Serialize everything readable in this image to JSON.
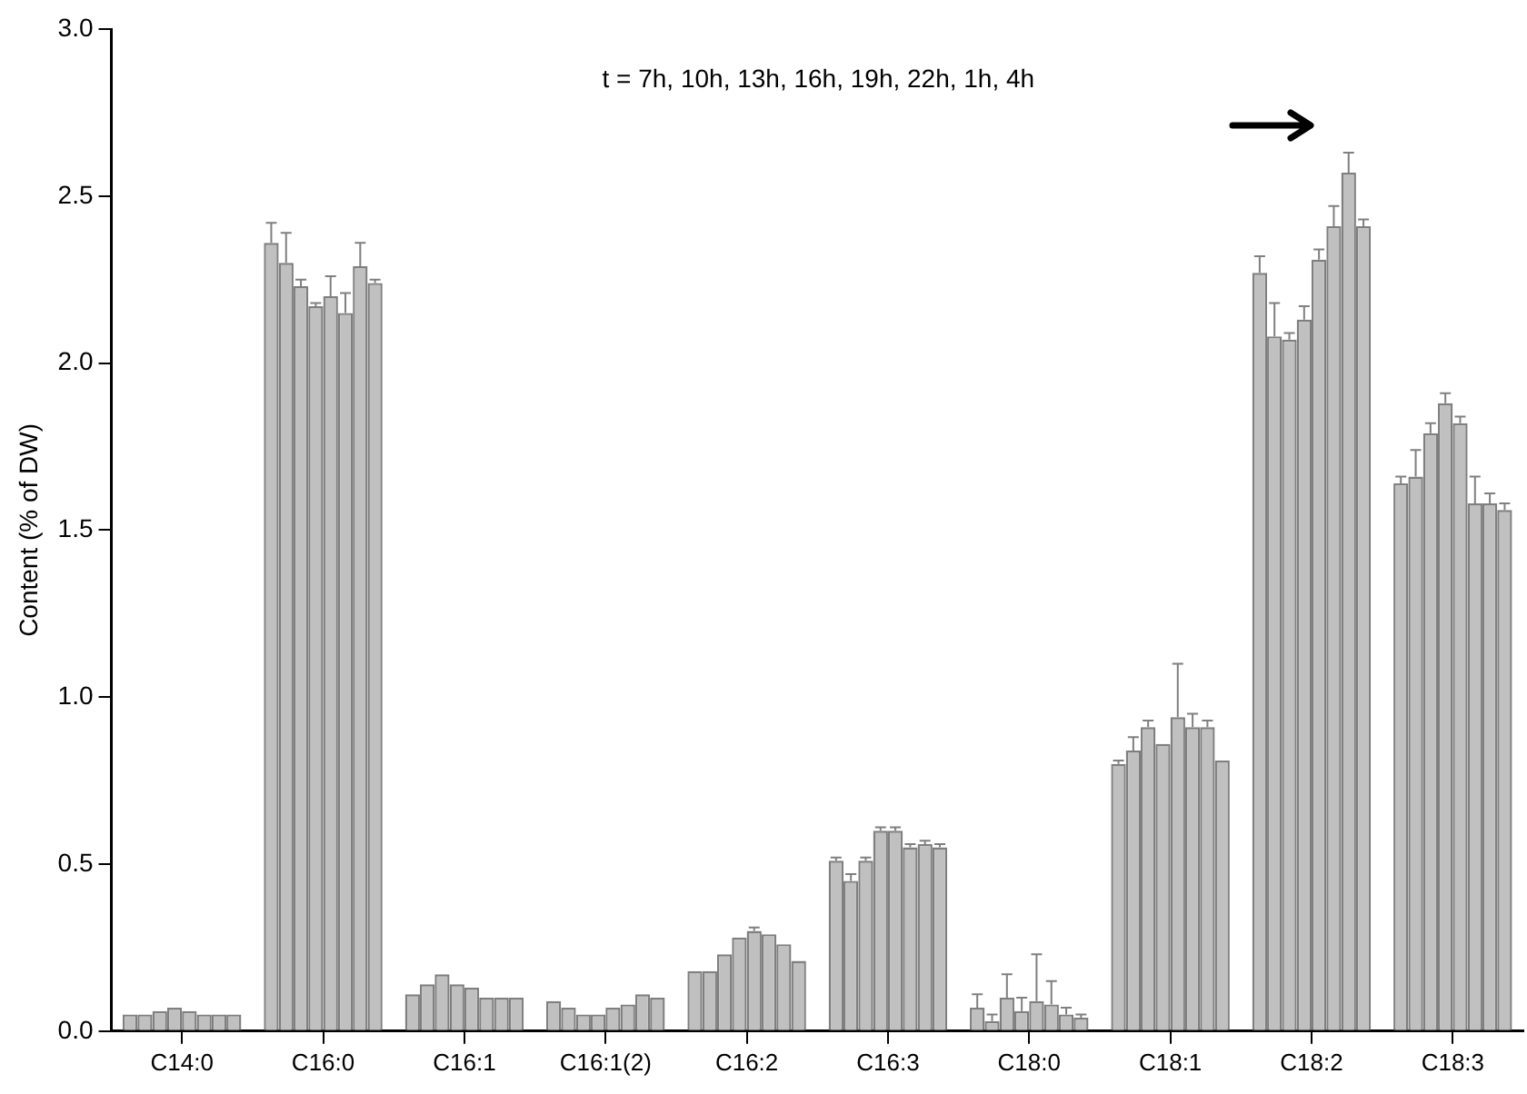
{
  "chart_data": {
    "type": "bar",
    "ylabel": "Content (% of DW)",
    "annotations": [
      "t = 7h, 10h, 13h, 16h, 19h, 22h, 1h, 4h"
    ],
    "categories": [
      "C14:0",
      "C16:0",
      "C16:1",
      "C16:1(2)",
      "C16:2",
      "C16:3",
      "C18:0",
      "C18:1",
      "C18:2",
      "C18:3"
    ],
    "ylim": [
      0,
      3
    ],
    "yticks": [
      {
        "value": 0,
        "label": "0.0"
      },
      {
        "value": 0.5,
        "label": "0.5"
      },
      {
        "value": 1,
        "label": "1.0"
      },
      {
        "value": 1.5,
        "label": "1.5"
      },
      {
        "value": 2,
        "label": "2.0"
      },
      {
        "value": 2.5,
        "label": "2.5"
      },
      {
        "value": 3,
        "label": "3.0"
      }
    ],
    "grid": false,
    "legend": false,
    "series": [
      {
        "color": "#c0c0c0",
        "values": [
          0.05,
          2.36,
          0.11,
          0.09,
          0.18,
          0.51,
          0.07,
          0.8,
          2.27,
          1.64
        ],
        "errors": [
          null,
          0.06,
          null,
          null,
          null,
          0.01,
          0.04,
          0.01,
          0.05,
          0.02
        ]
      },
      {
        "color": "#c0c0c0",
        "values": [
          0.05,
          2.3,
          0.14,
          0.07,
          0.18,
          0.45,
          0.03,
          0.84,
          2.08,
          1.66
        ],
        "errors": [
          null,
          0.09,
          null,
          null,
          null,
          0.02,
          0.02,
          0.04,
          0.1,
          0.08
        ]
      },
      {
        "color": "#c0c0c0",
        "values": [
          0.06,
          2.23,
          0.17,
          0.05,
          0.23,
          0.51,
          0.1,
          0.91,
          2.07,
          1.79
        ],
        "errors": [
          null,
          0.02,
          null,
          null,
          null,
          0.01,
          0.07,
          0.02,
          0.02,
          0.03
        ]
      },
      {
        "color": "#c0c0c0",
        "values": [
          0.07,
          2.17,
          0.14,
          0.05,
          0.28,
          0.6,
          0.06,
          0.86,
          2.13,
          1.88
        ],
        "errors": [
          null,
          0.01,
          null,
          null,
          null,
          0.01,
          0.04,
          null,
          0.04,
          0.03
        ]
      },
      {
        "color": "#c0c0c0",
        "values": [
          0.06,
          2.2,
          0.13,
          0.07,
          0.3,
          0.6,
          0.09,
          0.94,
          2.31,
          1.82
        ],
        "errors": [
          null,
          0.06,
          null,
          null,
          0.01,
          0.01,
          0.14,
          0.16,
          0.03,
          0.02
        ]
      },
      {
        "color": "#c0c0c0",
        "values": [
          0.05,
          2.15,
          0.1,
          0.08,
          0.29,
          0.55,
          0.08,
          0.91,
          2.41,
          1.58
        ],
        "errors": [
          null,
          0.06,
          null,
          null,
          null,
          0.01,
          0.07,
          0.04,
          0.06,
          0.08
        ]
      },
      {
        "color": "#c0c0c0",
        "values": [
          0.05,
          2.29,
          0.1,
          0.11,
          0.26,
          0.56,
          0.05,
          0.91,
          2.57,
          1.58
        ],
        "errors": [
          null,
          0.07,
          null,
          null,
          null,
          0.01,
          0.02,
          0.02,
          0.06,
          0.03
        ]
      },
      {
        "color": "#c0c0c0",
        "values": [
          0.05,
          2.24,
          0.1,
          0.1,
          0.21,
          0.55,
          0.04,
          0.81,
          2.41,
          1.56
        ],
        "errors": [
          null,
          0.01,
          null,
          null,
          null,
          0.01,
          0.01,
          null,
          0.02,
          0.02
        ]
      }
    ]
  }
}
